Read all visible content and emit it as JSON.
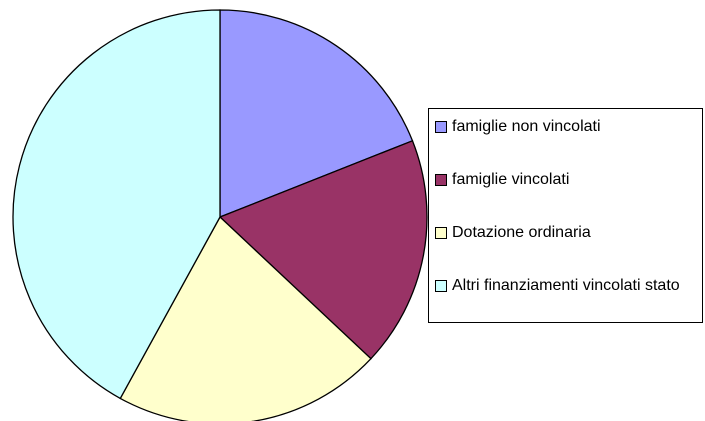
{
  "chart_data": {
    "type": "pie",
    "categories": [
      "famiglie non vincolati",
      "famiglie vincolati",
      "Dotazione ordinaria",
      "Altri finanziamenti vincolati stato"
    ],
    "values": [
      19,
      18,
      21,
      42
    ],
    "colors": [
      "#9999ff",
      "#993366",
      "#ffffcc",
      "#ccffff"
    ],
    "legend": "right"
  }
}
